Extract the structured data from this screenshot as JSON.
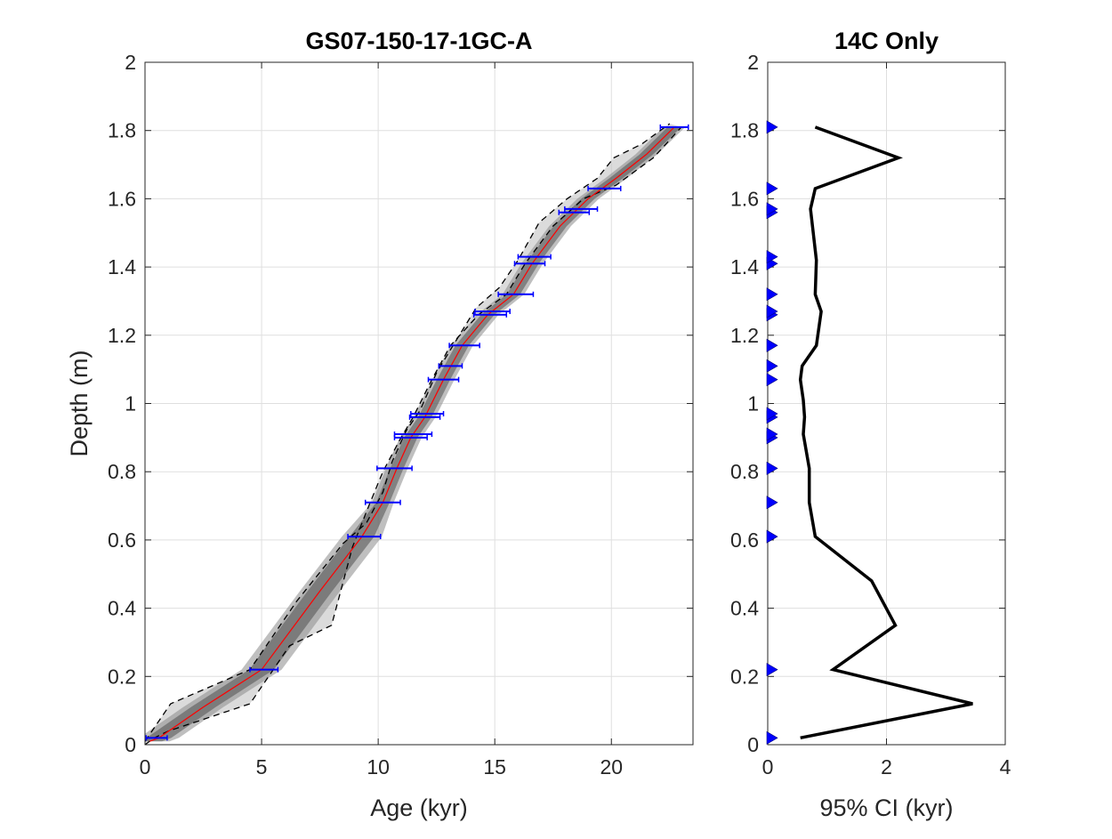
{
  "chart_data": [
    {
      "type": "line",
      "title": "GS07-150-17-1GC-A",
      "xlabel": "Age (kyr)",
      "ylabel": "Depth (m)",
      "xlim": [
        0,
        23.5
      ],
      "ylim": [
        0,
        2
      ],
      "xticks": [
        "0",
        "5",
        "10",
        "20"
      ],
      "xticks_all": [
        "0",
        "5",
        "10",
        "15",
        "20"
      ],
      "yticks": [
        "0",
        "0.2",
        "0.4",
        "0.6",
        "0.8",
        "1",
        "1.2",
        "1.4",
        "1.6",
        "1.8",
        "2"
      ],
      "grid": true,
      "series": [
        {
          "role": "median",
          "color": "#ff0000",
          "x": [
            0.2,
            0.6,
            2.5,
            5.0,
            7.5,
            9.3,
            10.2,
            10.8,
            11.4,
            12.0,
            12.8,
            13.6,
            14.7,
            15.8,
            16.6,
            17.8,
            19.0,
            20.2,
            21.5,
            22.7
          ],
          "y": [
            0.01,
            0.02,
            0.11,
            0.22,
            0.45,
            0.61,
            0.71,
            0.81,
            0.9,
            0.96,
            1.07,
            1.17,
            1.26,
            1.32,
            1.41,
            1.52,
            1.6,
            1.66,
            1.73,
            1.81
          ]
        },
        {
          "role": "lower-95",
          "color": "#000000",
          "dash": true,
          "x": [
            0.0,
            0.4,
            1.0,
            4.5,
            6.2,
            8.0,
            8.9,
            9.6,
            10.2,
            10.9,
            11.5,
            12.3,
            13.1,
            14.3,
            15.5,
            16.3,
            17.5,
            18.8,
            20.2,
            21.8,
            23.0
          ],
          "y": [
            0.0,
            0.02,
            0.04,
            0.12,
            0.29,
            0.35,
            0.58,
            0.7,
            0.8,
            0.89,
            0.96,
            1.07,
            1.17,
            1.26,
            1.32,
            1.41,
            1.52,
            1.6,
            1.64,
            1.72,
            1.81
          ]
        },
        {
          "role": "upper-95",
          "color": "#000000",
          "dash": true,
          "x": [
            0.0,
            1.1,
            4.5,
            6.5,
            8.5,
            9.5,
            10.2,
            10.6,
            11.2,
            11.8,
            12.5,
            13.3,
            14.2,
            15.2,
            16.0,
            16.9,
            18.1,
            19.4,
            20.1,
            21.3,
            22.5
          ],
          "y": [
            0.01,
            0.12,
            0.22,
            0.42,
            0.59,
            0.65,
            0.74,
            0.83,
            0.92,
            0.98,
            1.09,
            1.18,
            1.28,
            1.34,
            1.42,
            1.53,
            1.6,
            1.66,
            1.72,
            1.76,
            1.82
          ]
        }
      ],
      "dates": {
        "color": "#0000ff",
        "age": [
          0.5,
          5.1,
          9.4,
          10.2,
          10.7,
          11.4,
          11.5,
          12.0,
          12.1,
          12.8,
          13.1,
          13.7,
          14.8,
          14.9,
          15.9,
          16.5,
          16.7,
          18.4,
          18.7,
          19.7,
          22.7
        ],
        "age_err": [
          0.45,
          0.6,
          0.7,
          0.75,
          0.75,
          0.7,
          0.8,
          0.65,
          0.7,
          0.65,
          0.5,
          0.65,
          0.7,
          0.75,
          0.75,
          0.65,
          0.7,
          0.65,
          0.7,
          0.7,
          0.6
        ],
        "depth": [
          0.02,
          0.22,
          0.61,
          0.71,
          0.81,
          0.9,
          0.91,
          0.96,
          0.97,
          1.07,
          1.11,
          1.17,
          1.26,
          1.27,
          1.32,
          1.41,
          1.43,
          1.56,
          1.57,
          1.63,
          1.81
        ]
      }
    },
    {
      "type": "line",
      "title": "14C Only",
      "xlabel": "95% CI (kyr)",
      "xlim": [
        0,
        4
      ],
      "ylim": [
        0,
        2
      ],
      "xticks": [
        "0",
        "2",
        "4"
      ],
      "yticks": [
        "0",
        "0.2",
        "0.4",
        "0.6",
        "0.8",
        "1",
        "1.2",
        "1.4",
        "1.6",
        "1.8",
        "2"
      ],
      "grid": true,
      "series": [
        {
          "role": "ci-width",
          "color": "#000000",
          "x": [
            0.55,
            3.45,
            1.1,
            2.15,
            1.75,
            0.8,
            0.7,
            0.7,
            0.6,
            0.62,
            0.6,
            0.55,
            0.58,
            0.82,
            0.9,
            0.8,
            0.82,
            0.72,
            0.8,
            2.2,
            0.8
          ],
          "y": [
            0.02,
            0.12,
            0.22,
            0.35,
            0.48,
            0.61,
            0.71,
            0.81,
            0.91,
            0.96,
            1.01,
            1.07,
            1.11,
            1.17,
            1.27,
            1.32,
            1.42,
            1.57,
            1.63,
            1.72,
            1.81
          ]
        }
      ],
      "markers": {
        "color": "#0000ff",
        "depth": [
          0.02,
          0.22,
          0.61,
          0.71,
          0.81,
          0.9,
          0.91,
          0.96,
          0.97,
          1.07,
          1.11,
          1.17,
          1.26,
          1.27,
          1.32,
          1.41,
          1.43,
          1.56,
          1.57,
          1.63,
          1.81
        ]
      }
    }
  ]
}
